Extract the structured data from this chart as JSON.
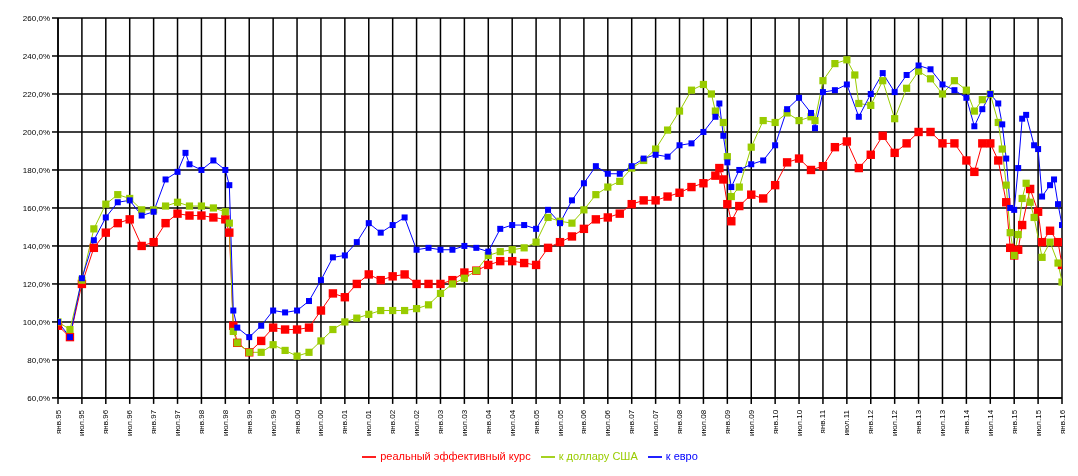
{
  "chart_data": {
    "type": "line",
    "legend": "bottom",
    "grid": true,
    "marker": "square",
    "line_style": "solid",
    "xlim": [
      "1995-01",
      "2016-01"
    ],
    "xticks": [
      {
        "value": "1995-01",
        "label": "янв.95"
      },
      {
        "value": "1995-07",
        "label": "июл.95"
      },
      {
        "value": "1996-01",
        "label": "янв.96"
      },
      {
        "value": "1996-07",
        "label": "июл.96"
      },
      {
        "value": "1997-01",
        "label": "янв.97"
      },
      {
        "value": "1997-07",
        "label": "июл.97"
      },
      {
        "value": "1998-01",
        "label": "янв.98"
      },
      {
        "value": "1998-07",
        "label": "июл.98"
      },
      {
        "value": "1999-01",
        "label": "янв.99"
      },
      {
        "value": "1999-07",
        "label": "июл.99"
      },
      {
        "value": "2000-01",
        "label": "янв.00"
      },
      {
        "value": "2000-07",
        "label": "июл.00"
      },
      {
        "value": "2001-01",
        "label": "янв.01"
      },
      {
        "value": "2001-07",
        "label": "июл.01"
      },
      {
        "value": "2002-01",
        "label": "янв.02"
      },
      {
        "value": "2002-07",
        "label": "июл.02"
      },
      {
        "value": "2003-01",
        "label": "янв.03"
      },
      {
        "value": "2003-07",
        "label": "июл.03"
      },
      {
        "value": "2004-01",
        "label": "янв.04"
      },
      {
        "value": "2004-07",
        "label": "июл.04"
      },
      {
        "value": "2005-01",
        "label": "янв.05"
      },
      {
        "value": "2005-07",
        "label": "июл.05"
      },
      {
        "value": "2006-01",
        "label": "янв.06"
      },
      {
        "value": "2006-07",
        "label": "июл.06"
      },
      {
        "value": "2007-01",
        "label": "янв.07"
      },
      {
        "value": "2007-07",
        "label": "июл.07"
      },
      {
        "value": "2008-01",
        "label": "янв.08"
      },
      {
        "value": "2008-07",
        "label": "июл.08"
      },
      {
        "value": "2009-01",
        "label": "янв.09"
      },
      {
        "value": "2009-07",
        "label": "июл.09"
      },
      {
        "value": "2010-01",
        "label": "янв.10"
      },
      {
        "value": "2010-07",
        "label": "июл.10"
      },
      {
        "value": "2011-01",
        "label": "янв.11"
      },
      {
        "value": "2011-07",
        "label": "июл.11"
      },
      {
        "value": "2012-01",
        "label": "янв.12"
      },
      {
        "value": "2012-07",
        "label": "июл.12"
      },
      {
        "value": "2013-01",
        "label": "янв.13"
      },
      {
        "value": "2013-07",
        "label": "июл.13"
      },
      {
        "value": "2014-01",
        "label": "янв.14"
      },
      {
        "value": "2014-07",
        "label": "июл.14"
      },
      {
        "value": "2015-01",
        "label": "янв.15"
      },
      {
        "value": "2015-07",
        "label": "июл.15"
      },
      {
        "value": "2016-01",
        "label": "янв.16"
      }
    ],
    "ylim": [
      60,
      260
    ],
    "yticks": [
      {
        "value": 60,
        "label": "60,0%"
      },
      {
        "value": 80,
        "label": "80,0%"
      },
      {
        "value": 100,
        "label": "100,0%"
      },
      {
        "value": 120,
        "label": "120,0%"
      },
      {
        "value": 140,
        "label": "140,0%"
      },
      {
        "value": 160,
        "label": "160,0%"
      },
      {
        "value": 180,
        "label": "180,0%"
      },
      {
        "value": 200,
        "label": "200,0%"
      },
      {
        "value": 220,
        "label": "220,0%"
      },
      {
        "value": 240,
        "label": "240,0%"
      },
      {
        "value": 260,
        "label": "260,0%"
      }
    ],
    "series": [
      {
        "name": "реальный эффективный курс",
        "color": "#ff0000",
        "x": [
          "1995-01",
          "1995-04",
          "1995-07",
          "1995-10",
          "1996-01",
          "1996-04",
          "1996-07",
          "1996-10",
          "1997-01",
          "1997-04",
          "1997-07",
          "1997-10",
          "1998-01",
          "1998-04",
          "1998-07",
          "1998-08",
          "1998-09",
          "1998-10",
          "1999-01",
          "1999-04",
          "1999-07",
          "1999-10",
          "2000-01",
          "2000-04",
          "2000-07",
          "2000-10",
          "2001-01",
          "2001-04",
          "2001-07",
          "2001-10",
          "2002-01",
          "2002-04",
          "2002-07",
          "2002-10",
          "2003-01",
          "2003-04",
          "2003-07",
          "2003-10",
          "2004-01",
          "2004-04",
          "2004-07",
          "2004-10",
          "2005-01",
          "2005-04",
          "2005-07",
          "2005-10",
          "2006-01",
          "2006-04",
          "2006-07",
          "2006-10",
          "2007-01",
          "2007-04",
          "2007-07",
          "2007-10",
          "2008-01",
          "2008-04",
          "2008-07",
          "2008-10",
          "2008-11",
          "2008-12",
          "2009-01",
          "2009-02",
          "2009-04",
          "2009-07",
          "2009-10",
          "2010-01",
          "2010-04",
          "2010-07",
          "2010-10",
          "2011-01",
          "2011-04",
          "2011-07",
          "2011-10",
          "2012-01",
          "2012-04",
          "2012-07",
          "2012-10",
          "2013-01",
          "2013-04",
          "2013-07",
          "2013-10",
          "2014-01",
          "2014-03",
          "2014-05",
          "2014-07",
          "2014-09",
          "2014-11",
          "2014-12",
          "2015-01",
          "2015-02",
          "2015-03",
          "2015-05",
          "2015-07",
          "2015-08",
          "2015-10",
          "2015-12",
          "2016-01"
        ],
        "values": [
          98,
          92,
          120,
          139,
          147,
          152,
          154,
          140,
          142,
          152,
          157,
          156,
          156,
          155,
          154,
          147,
          98,
          89,
          84,
          90,
          97,
          96,
          96,
          97,
          106,
          115,
          113,
          120,
          125,
          122,
          124,
          125,
          120,
          120,
          120,
          122,
          126,
          127,
          130,
          132,
          132,
          131,
          130,
          139,
          142,
          145,
          149,
          154,
          155,
          157,
          162,
          164,
          164,
          166,
          168,
          171,
          173,
          177,
          181,
          175,
          162,
          153,
          161,
          167,
          165,
          172,
          184,
          186,
          180,
          182,
          192,
          195,
          181,
          188,
          198,
          189,
          194,
          200,
          200,
          194,
          194,
          185,
          179,
          194,
          194,
          185,
          163,
          139,
          135,
          138,
          151,
          170,
          158,
          142,
          148,
          142,
          130
        ]
      },
      {
        "name": "к доллару США",
        "color": "#99cc00",
        "x": [
          "1995-01",
          "1995-04",
          "1995-07",
          "1995-10",
          "1996-01",
          "1996-04",
          "1996-07",
          "1996-10",
          "1997-01",
          "1997-04",
          "1997-07",
          "1997-10",
          "1998-01",
          "1998-04",
          "1998-07",
          "1998-08",
          "1998-09",
          "1998-10",
          "1999-01",
          "1999-04",
          "1999-07",
          "1999-10",
          "2000-01",
          "2000-04",
          "2000-07",
          "2000-10",
          "2001-01",
          "2001-04",
          "2001-07",
          "2001-10",
          "2002-01",
          "2002-04",
          "2002-07",
          "2002-10",
          "2003-01",
          "2003-04",
          "2003-07",
          "2003-10",
          "2004-01",
          "2004-04",
          "2004-07",
          "2004-10",
          "2005-01",
          "2005-04",
          "2005-07",
          "2005-10",
          "2006-01",
          "2006-04",
          "2006-07",
          "2006-10",
          "2007-01",
          "2007-04",
          "2007-07",
          "2007-10",
          "2008-01",
          "2008-04",
          "2008-07",
          "2008-09",
          "2008-10",
          "2008-12",
          "2009-01",
          "2009-02",
          "2009-04",
          "2009-07",
          "2009-10",
          "2010-01",
          "2010-04",
          "2010-07",
          "2010-10",
          "2010-11",
          "2011-01",
          "2011-04",
          "2011-07",
          "2011-09",
          "2011-10",
          "2012-01",
          "2012-04",
          "2012-07",
          "2012-10",
          "2013-01",
          "2013-04",
          "2013-07",
          "2013-10",
          "2014-01",
          "2014-03",
          "2014-05",
          "2014-07",
          "2014-09",
          "2014-10",
          "2014-11",
          "2014-12",
          "2015-01",
          "2015-02",
          "2015-03",
          "2015-04",
          "2015-05",
          "2015-06",
          "2015-08",
          "2015-10",
          "2015-12",
          "2016-01"
        ],
        "values": [
          100,
          96,
          122,
          149,
          162,
          167,
          165,
          159,
          159,
          161,
          163,
          161,
          161,
          160,
          158,
          152,
          95,
          89,
          84,
          84,
          88,
          85,
          82,
          84,
          90,
          96,
          100,
          102,
          104,
          106,
          106,
          106,
          107,
          109,
          115,
          120,
          123,
          127,
          135,
          137,
          138,
          139,
          142,
          155,
          153,
          152,
          159,
          167,
          171,
          174,
          181,
          185,
          191,
          201,
          211,
          222,
          225,
          220,
          211,
          205,
          187,
          166,
          171,
          192,
          206,
          205,
          210,
          206,
          208,
          206,
          227,
          236,
          238,
          230,
          215,
          214,
          227,
          207,
          223,
          232,
          228,
          220,
          227,
          222,
          211,
          217,
          220,
          205,
          191,
          172,
          147,
          135,
          146,
          165,
          173,
          163,
          155,
          134,
          142,
          131,
          121
        ]
      },
      {
        "name": "к евро",
        "color": "#0000ff",
        "x": [
          "1995-01",
          "1995-04",
          "1995-07",
          "1995-10",
          "1996-01",
          "1996-04",
          "1996-07",
          "1996-10",
          "1997-01",
          "1997-04",
          "1997-07",
          "1997-09",
          "1997-10",
          "1998-01",
          "1998-04",
          "1998-07",
          "1998-08",
          "1998-09",
          "1998-10",
          "1999-01",
          "1999-04",
          "1999-07",
          "1999-10",
          "2000-01",
          "2000-04",
          "2000-07",
          "2000-10",
          "2001-01",
          "2001-04",
          "2001-07",
          "2001-10",
          "2002-01",
          "2002-04",
          "2002-07",
          "2002-10",
          "2003-01",
          "2003-04",
          "2003-07",
          "2003-10",
          "2004-01",
          "2004-04",
          "2004-07",
          "2004-10",
          "2005-01",
          "2005-04",
          "2005-07",
          "2005-10",
          "2006-01",
          "2006-04",
          "2006-07",
          "2006-10",
          "2007-01",
          "2007-04",
          "2007-07",
          "2007-10",
          "2008-01",
          "2008-04",
          "2008-07",
          "2008-10",
          "2008-11",
          "2008-12",
          "2009-01",
          "2009-02",
          "2009-04",
          "2009-07",
          "2009-10",
          "2010-01",
          "2010-04",
          "2010-07",
          "2010-10",
          "2010-11",
          "2011-01",
          "2011-04",
          "2011-07",
          "2011-10",
          "2012-01",
          "2012-04",
          "2012-07",
          "2012-10",
          "2013-01",
          "2013-04",
          "2013-07",
          "2013-10",
          "2014-01",
          "2014-03",
          "2014-05",
          "2014-07",
          "2014-09",
          "2014-10",
          "2014-11",
          "2014-12",
          "2015-01",
          "2015-02",
          "2015-03",
          "2015-04",
          "2015-06",
          "2015-07",
          "2015-08",
          "2015-10",
          "2015-11",
          "2015-12",
          "2016-01"
        ],
        "values": [
          100,
          92,
          123,
          143,
          155,
          163,
          164,
          156,
          158,
          175,
          179,
          189,
          183,
          180,
          185,
          180,
          172,
          106,
          97,
          92,
          98,
          106,
          105,
          106,
          111,
          122,
          134,
          135,
          142,
          152,
          147,
          151,
          155,
          138,
          139,
          138,
          138,
          140,
          139,
          137,
          149,
          151,
          151,
          149,
          159,
          152,
          164,
          173,
          182,
          178,
          178,
          182,
          186,
          188,
          187,
          193,
          194,
          200,
          208,
          215,
          198,
          184,
          171,
          180,
          183,
          185,
          193,
          212,
          218,
          210,
          202,
          221,
          222,
          225,
          208,
          220,
          231,
          221,
          230,
          235,
          233,
          225,
          222,
          218,
          203,
          212,
          220,
          215,
          204,
          186,
          160,
          159,
          181,
          207,
          209,
          193,
          191,
          166,
          172,
          175,
          162,
          151
        ]
      }
    ]
  }
}
